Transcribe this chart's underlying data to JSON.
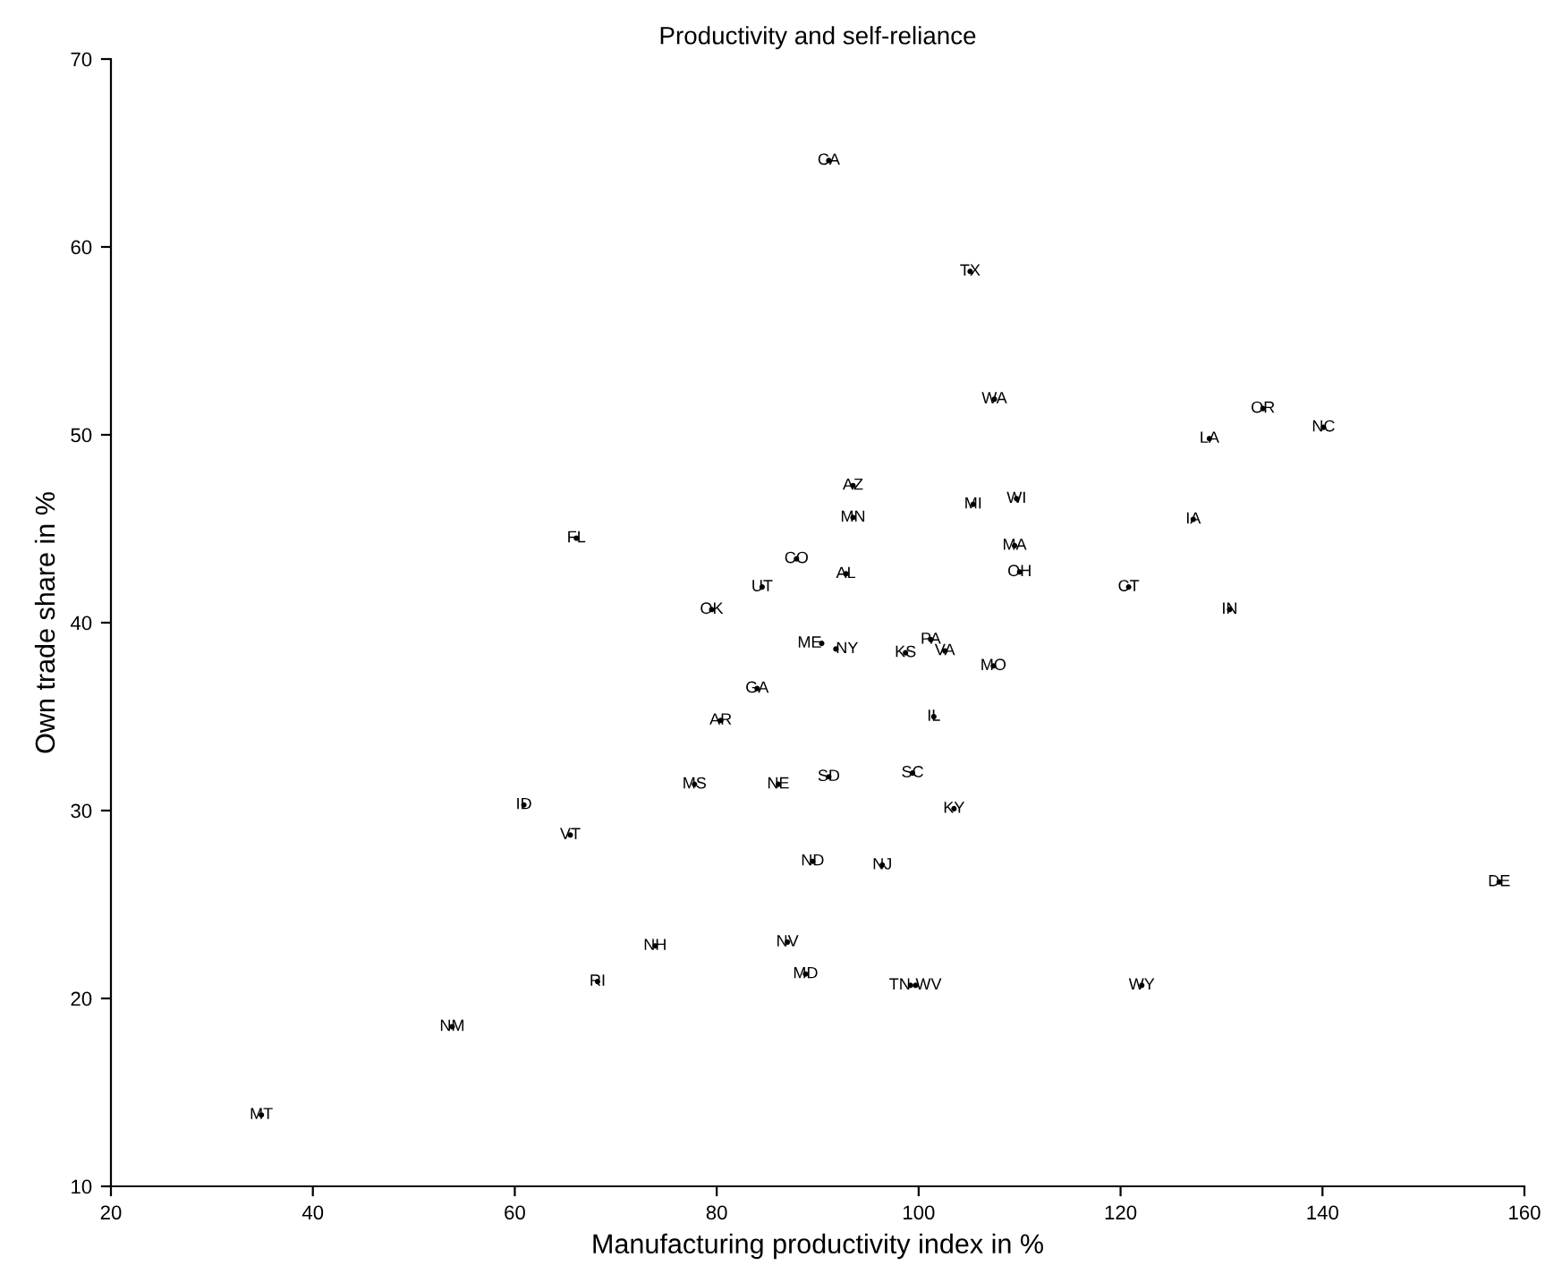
{
  "chart_data": {
    "type": "scatter",
    "title": "Productivity and self-reliance",
    "xlabel": "Manufacturing productivity index in %",
    "ylabel": "Own trade share in %",
    "marker": "circle",
    "grid": false,
    "legend": false,
    "xlim": [
      20,
      160
    ],
    "xticks": [
      20,
      40,
      60,
      80,
      100,
      120,
      140,
      160
    ],
    "ylim": [
      10,
      70
    ],
    "yticks": [
      10,
      20,
      30,
      40,
      50,
      60,
      70
    ],
    "series": [
      {
        "color": "#000000",
        "x": [
          91.1,
          105.1,
          107.5,
          134.1,
          140.1,
          128.8,
          93.5,
          109.7,
          105.4,
          93.5,
          127.2,
          66.1,
          109.5,
          87.9,
          110.0,
          92.8,
          84.5,
          120.8,
          79.5,
          130.8,
          90.4,
          91.8,
          101.2,
          98.7,
          102.6,
          107.4,
          84.0,
          80.4,
          101.5,
          77.8,
          86.1,
          91.1,
          99.4,
          60.9,
          103.5,
          65.5,
          89.5,
          96.4,
          157.5,
          73.9,
          87.0,
          88.8,
          68.2,
          99.2,
          99.7,
          122.1,
          53.8,
          34.9
        ],
        "values": [
          64.6,
          58.7,
          51.9,
          51.4,
          50.4,
          49.8,
          47.3,
          46.6,
          46.3,
          45.6,
          45.5,
          44.5,
          44.1,
          43.4,
          42.7,
          42.6,
          41.9,
          41.9,
          40.7,
          40.7,
          38.9,
          38.6,
          39.1,
          38.4,
          38.5,
          37.7,
          36.5,
          34.8,
          35.0,
          31.4,
          31.4,
          31.8,
          32.0,
          30.3,
          30.1,
          28.7,
          27.3,
          27.1,
          26.2,
          22.8,
          23.0,
          21.3,
          20.9,
          20.7,
          20.7,
          20.7,
          18.5,
          13.8
        ],
        "value_labels": [
          "CA",
          "TX",
          "WA",
          "OR",
          "NC",
          "LA",
          "AZ",
          "WI",
          "MI",
          "MN",
          "IA",
          "FL",
          "MA",
          "CO",
          "OH",
          "AL",
          "UT",
          "CT",
          "OK",
          "IN",
          "ME",
          "NY",
          "PA",
          "KS",
          "VA",
          "MO",
          "GA",
          "AR",
          "IL",
          "MS",
          "NE",
          "SD",
          "SC",
          "ID",
          "KY",
          "VT",
          "ND",
          "NJ",
          "DE",
          "NH",
          "NV",
          "MD",
          "RI",
          "TN",
          "WV",
          "WY",
          "NM",
          "MT"
        ]
      }
    ]
  }
}
